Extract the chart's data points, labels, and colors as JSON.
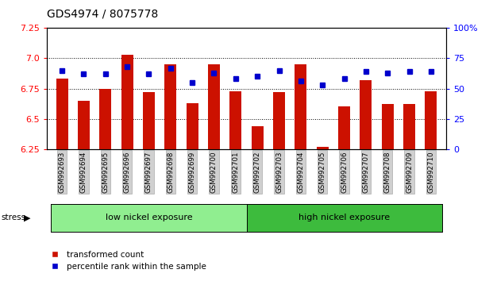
{
  "title": "GDS4974 / 8075778",
  "samples": [
    "GSM992693",
    "GSM992694",
    "GSM992695",
    "GSM992696",
    "GSM992697",
    "GSM992698",
    "GSM992699",
    "GSM992700",
    "GSM992701",
    "GSM992702",
    "GSM992703",
    "GSM992704",
    "GSM992705",
    "GSM992706",
    "GSM992707",
    "GSM992708",
    "GSM992709",
    "GSM992710"
  ],
  "transformed_count": [
    6.83,
    6.65,
    6.75,
    7.03,
    6.72,
    6.95,
    6.63,
    6.95,
    6.73,
    6.44,
    6.72,
    6.95,
    6.27,
    6.6,
    6.82,
    6.62,
    6.62,
    6.73
  ],
  "percentile_rank": [
    65,
    62,
    62,
    68,
    62,
    67,
    55,
    63,
    58,
    60,
    65,
    56,
    53,
    58,
    64,
    63,
    64,
    64
  ],
  "ylim_left": [
    6.25,
    7.25
  ],
  "ylim_right": [
    0,
    100
  ],
  "yticks_left": [
    6.25,
    6.5,
    6.75,
    7.0,
    7.25
  ],
  "yticks_right": [
    0,
    25,
    50,
    75,
    100
  ],
  "groups": [
    {
      "label": "low nickel exposure",
      "start": 0,
      "end": 9,
      "color": "#90ee90"
    },
    {
      "label": "high nickel exposure",
      "start": 9,
      "end": 18,
      "color": "#3dbb3d"
    }
  ],
  "bar_color": "#cc1100",
  "dot_color": "#0000cc",
  "bar_width": 0.55,
  "legend_labels": [
    "transformed count",
    "percentile rank within the sample"
  ],
  "legend_colors": [
    "#cc1100",
    "#0000cc"
  ]
}
